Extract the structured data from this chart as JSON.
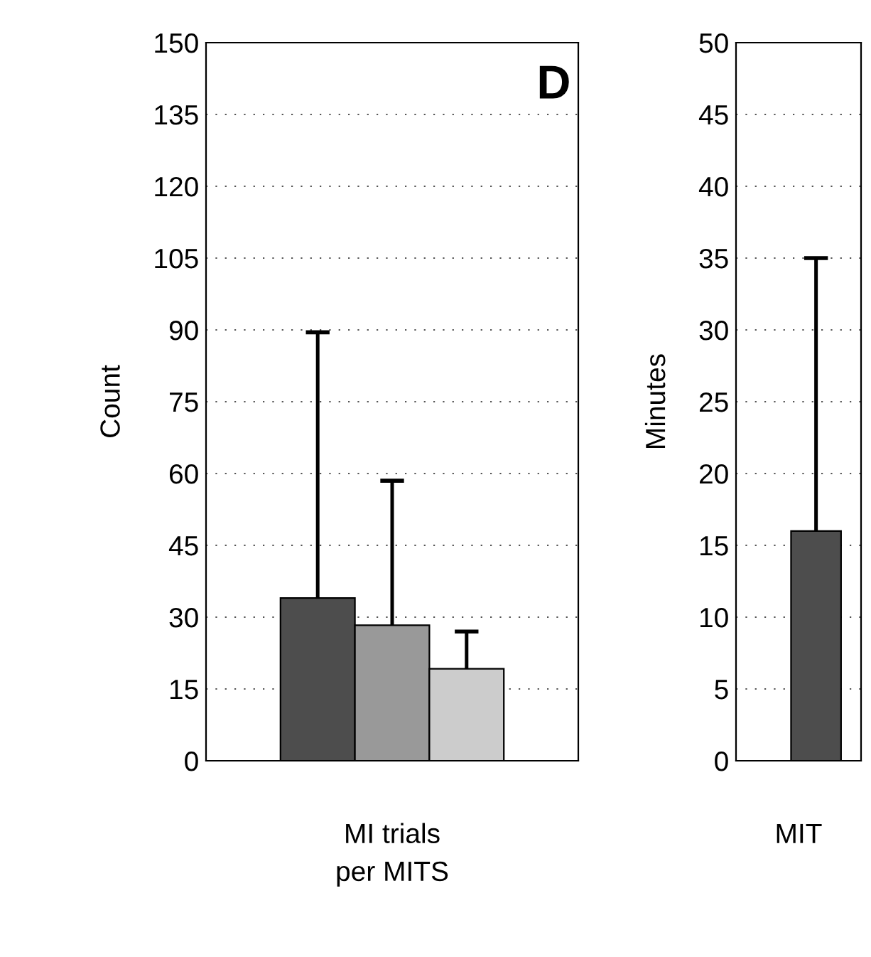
{
  "chart_data": [
    {
      "type": "bar",
      "annotations": [
        "D"
      ],
      "ylabel": "Count",
      "xlabel": "MI trials\nper MITS",
      "categories": [
        null,
        null,
        null
      ],
      "values": [
        34,
        28.3,
        19.2
      ],
      "colors": [
        "#4d4d4d",
        "#999999",
        "#cccccc"
      ],
      "errors": [
        [
          34,
          89.5
        ],
        [
          28.3,
          58.5
        ],
        [
          19.2,
          27
        ]
      ],
      "ylim": [
        0,
        150
      ],
      "yticks": [
        0,
        15,
        30,
        45,
        60,
        75,
        90,
        105,
        120,
        135,
        150
      ],
      "grid": "y",
      "legend": false
    },
    {
      "type": "bar",
      "ylabel": "Minutes",
      "xlabel": "MIT",
      "categories": [
        null
      ],
      "values": [
        16
      ],
      "colors": [
        "#4d4d4d"
      ],
      "errors": [
        [
          16,
          35
        ]
      ],
      "ylim": [
        0,
        50
      ],
      "yticks": [
        0,
        5,
        10,
        15,
        20,
        25,
        30,
        35,
        40,
        45,
        50
      ],
      "grid": "y",
      "legend": false
    }
  ]
}
